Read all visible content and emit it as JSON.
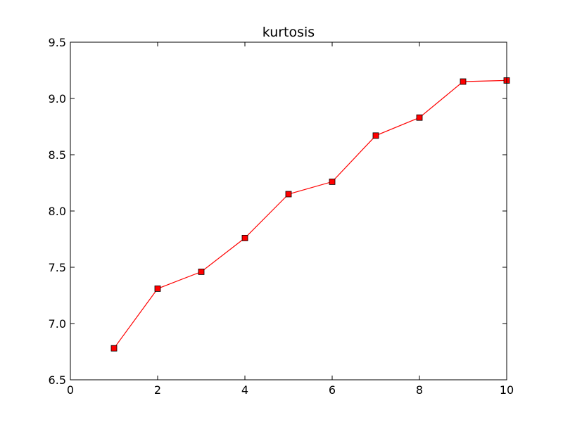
{
  "chart_data": {
    "type": "line",
    "title": "kurtosis",
    "xlabel": "",
    "ylabel": "",
    "xlim": [
      0,
      10
    ],
    "ylim": [
      6.5,
      9.5
    ],
    "xticks": [
      0,
      2,
      4,
      6,
      8,
      10
    ],
    "xtick_labels": [
      "0",
      "2",
      "4",
      "6",
      "8",
      "10"
    ],
    "yticks": [
      6.5,
      7.0,
      7.5,
      8.0,
      8.5,
      9.0,
      9.5
    ],
    "ytick_labels": [
      "6.5",
      "7.0",
      "7.5",
      "8.0",
      "8.5",
      "9.0",
      "9.5"
    ],
    "grid": false,
    "series": [
      {
        "x": [
          1,
          2,
          3,
          4,
          5,
          6,
          7,
          8,
          9,
          10
        ],
        "y": [
          6.78,
          7.31,
          7.46,
          7.76,
          8.15,
          8.26,
          8.67,
          8.83,
          9.15,
          9.16
        ],
        "color": "#ff0000",
        "marker": "square",
        "marker_color": "#ff0000"
      }
    ]
  }
}
